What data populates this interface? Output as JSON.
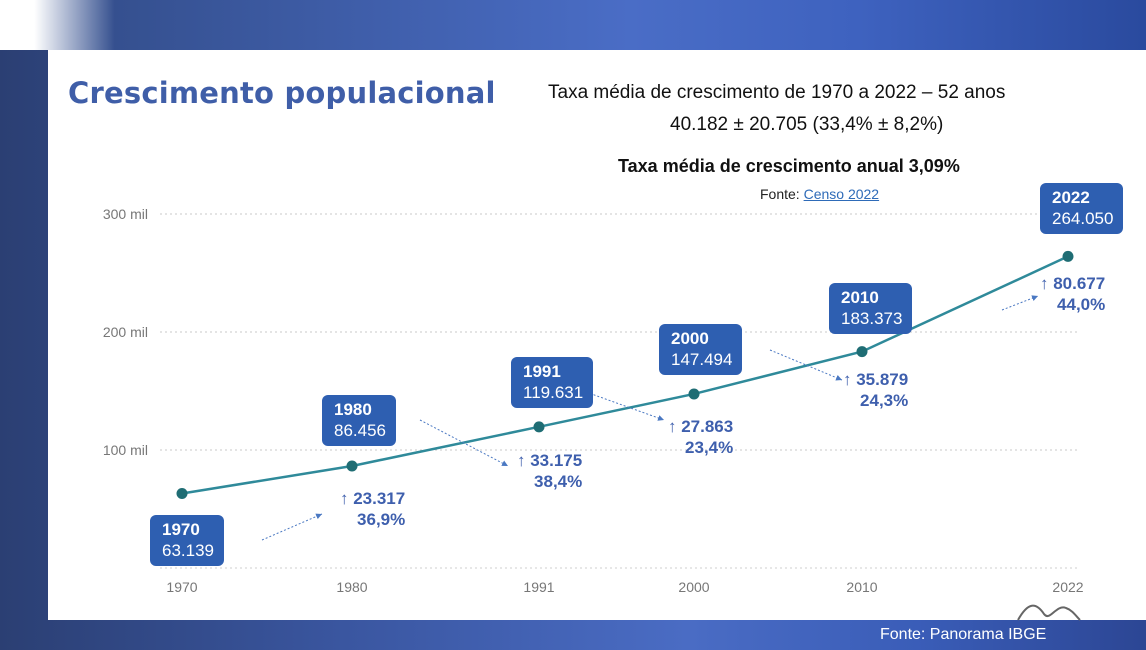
{
  "title": "Crescimento populacional",
  "subtitle_line1": "Taxa média de crescimento de 1970 a 2022 – 52 anos",
  "subtitle_line2": "40.182 ± 20.705 (33,4%  ± 8,2%)",
  "annual_rate": "Taxa média de crescimento anual 3,09%",
  "source_prefix": "Fonte: ",
  "source_link": "Censo 2022",
  "footer": "Fonte: Panorama IBGE",
  "colors": {
    "line": "#2f8a9a",
    "marker": "#1f6d74",
    "callout": "#2e5fb1",
    "growth_text": "#3e5fad",
    "title": "#3f5ea8"
  },
  "chart_data": {
    "type": "line",
    "categories": [
      "1970",
      "1980",
      "1991",
      "2000",
      "2010",
      "2022"
    ],
    "series": [
      {
        "values": [
          63139,
          86456,
          119631,
          147494,
          183373,
          264050
        ]
      }
    ],
    "ylim": [
      0,
      300000
    ],
    "yticks": [
      100000,
      200000,
      300000
    ],
    "ytick_labels": [
      "100 mil",
      "200 mil",
      "300 mil"
    ],
    "grid": true,
    "data_labels": [
      {
        "year": "1970",
        "value": "63.139"
      },
      {
        "year": "1980",
        "value": "86.456"
      },
      {
        "year": "1991",
        "value": "119.631"
      },
      {
        "year": "2000",
        "value": "147.494"
      },
      {
        "year": "2010",
        "value": "183.373"
      },
      {
        "year": "2022",
        "value": "264.050"
      }
    ],
    "growth_annotations": [
      {
        "arrow": "↑",
        "value": "23.317",
        "percent": "36,9%"
      },
      {
        "arrow": "↑",
        "value": "33.175",
        "percent": "38,4%"
      },
      {
        "arrow": "↑",
        "value": "27.863",
        "percent": "23,4%"
      },
      {
        "arrow": "↑",
        "value": "35.879",
        "percent": "24,3%"
      },
      {
        "arrow": "↑",
        "value": "80.677",
        "percent": "44,0%"
      }
    ]
  }
}
